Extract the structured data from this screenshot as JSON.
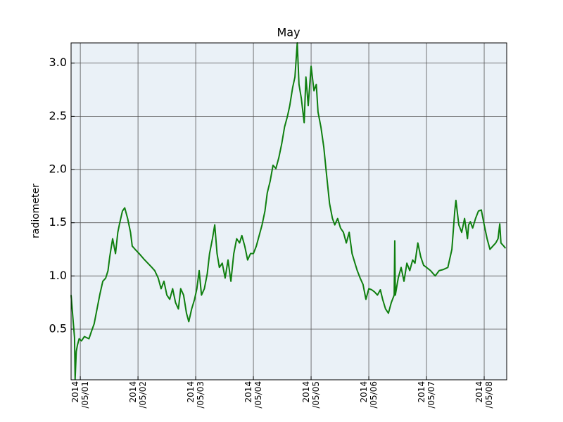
{
  "chart_data": {
    "type": "line",
    "title": "May",
    "ylabel": "radiometer",
    "color": "#0f7f0f",
    "grid": true,
    "background": "#eaf1f7",
    "xlim": [
      0.84,
      8.39
    ],
    "ylim": [
      0.024,
      3.19
    ],
    "xticks": [
      {
        "value": 1,
        "label": "2014\n/05/01"
      },
      {
        "value": 2,
        "label": "2014\n/05/02"
      },
      {
        "value": 3,
        "label": "2014\n/05/03"
      },
      {
        "value": 4,
        "label": "2014\n/05/04"
      },
      {
        "value": 5,
        "label": "2014\n/05/05"
      },
      {
        "value": 6,
        "label": "2014\n/05/06"
      },
      {
        "value": 7,
        "label": "2014\n/05/07"
      },
      {
        "value": 8,
        "label": "2014\n/05/08"
      }
    ],
    "yticks": [
      0.5,
      {
        "value": 1,
        "label": "1.0"
      },
      1.5,
      {
        "value": 2,
        "label": "2.0"
      },
      2.5,
      {
        "value": 3,
        "label": "3.0"
      }
    ],
    "x": [
      0.84,
      0.88,
      0.9,
      0.91,
      0.93,
      0.95,
      0.98,
      1.02,
      1.07,
      1.15,
      1.2,
      1.24,
      1.29,
      1.34,
      1.39,
      1.44,
      1.48,
      1.51,
      1.56,
      1.61,
      1.65,
      1.68,
      1.73,
      1.77,
      1.82,
      1.87,
      1.9,
      1.95,
      2.02,
      2.1,
      2.17,
      2.24,
      2.29,
      2.35,
      2.4,
      2.45,
      2.5,
      2.55,
      2.6,
      2.65,
      2.7,
      2.74,
      2.79,
      2.84,
      2.88,
      2.93,
      2.98,
      3.02,
      3.06,
      3.1,
      3.15,
      3.2,
      3.24,
      3.29,
      3.33,
      3.37,
      3.41,
      3.46,
      3.51,
      3.56,
      3.61,
      3.66,
      3.71,
      3.76,
      3.8,
      3.85,
      3.9,
      3.95,
      4.0,
      4.05,
      4.1,
      4.15,
      4.2,
      4.24,
      4.29,
      4.34,
      4.39,
      4.44,
      4.49,
      4.54,
      4.59,
      4.63,
      4.68,
      4.72,
      4.76,
      4.79,
      4.83,
      4.88,
      4.91,
      4.95,
      5.0,
      5.05,
      5.09,
      5.12,
      5.17,
      5.22,
      5.27,
      5.32,
      5.37,
      5.41,
      5.46,
      5.51,
      5.56,
      5.61,
      5.66,
      5.71,
      5.76,
      5.8,
      5.85,
      5.9,
      5.95,
      6.0,
      6.05,
      6.1,
      6.15,
      6.2,
      6.24,
      6.29,
      6.34,
      6.39,
      6.44,
      6.45,
      6.46,
      6.51,
      6.56,
      6.61,
      6.66,
      6.71,
      6.76,
      6.8,
      6.85,
      6.9,
      6.95,
      7.0,
      7.07,
      7.15,
      7.22,
      7.29,
      7.37,
      7.44,
      7.49,
      7.51,
      7.56,
      7.61,
      7.66,
      7.71,
      7.73,
      7.76,
      7.8,
      7.85,
      7.9,
      7.95,
      8.0,
      8.05,
      8.1,
      8.15,
      8.2,
      8.24,
      8.27,
      8.29,
      8.34,
      8.37
    ],
    "values": [
      0.82,
      0.55,
      0.42,
      0.03,
      0.29,
      0.35,
      0.41,
      0.39,
      0.43,
      0.41,
      0.49,
      0.55,
      0.69,
      0.83,
      0.95,
      0.98,
      1.05,
      1.18,
      1.35,
      1.21,
      1.41,
      1.49,
      1.61,
      1.64,
      1.54,
      1.41,
      1.28,
      1.25,
      1.21,
      1.16,
      1.12,
      1.08,
      1.05,
      0.98,
      0.88,
      0.95,
      0.82,
      0.78,
      0.88,
      0.75,
      0.69,
      0.88,
      0.82,
      0.65,
      0.57,
      0.69,
      0.78,
      0.88,
      1.05,
      0.82,
      0.88,
      1.02,
      1.21,
      1.35,
      1.48,
      1.21,
      1.08,
      1.12,
      0.98,
      1.15,
      0.95,
      1.21,
      1.35,
      1.31,
      1.38,
      1.28,
      1.15,
      1.21,
      1.21,
      1.28,
      1.38,
      1.48,
      1.61,
      1.78,
      1.89,
      2.04,
      2.01,
      2.11,
      2.24,
      2.4,
      2.5,
      2.6,
      2.77,
      2.87,
      3.19,
      2.8,
      2.67,
      2.44,
      2.87,
      2.6,
      2.97,
      2.74,
      2.8,
      2.54,
      2.4,
      2.21,
      1.94,
      1.68,
      1.54,
      1.48,
      1.54,
      1.45,
      1.41,
      1.31,
      1.41,
      1.21,
      1.12,
      1.05,
      0.98,
      0.92,
      0.78,
      0.88,
      0.87,
      0.85,
      0.82,
      0.87,
      0.78,
      0.69,
      0.65,
      0.75,
      0.82,
      1.33,
      0.82,
      0.98,
      1.08,
      0.95,
      1.12,
      1.05,
      1.15,
      1.12,
      1.31,
      1.18,
      1.1,
      1.08,
      1.05,
      1.0,
      1.05,
      1.06,
      1.08,
      1.25,
      1.61,
      1.71,
      1.48,
      1.41,
      1.54,
      1.35,
      1.48,
      1.51,
      1.45,
      1.54,
      1.61,
      1.62,
      1.48,
      1.35,
      1.25,
      1.28,
      1.31,
      1.35,
      1.49,
      1.31,
      1.28,
      1.26
    ]
  }
}
